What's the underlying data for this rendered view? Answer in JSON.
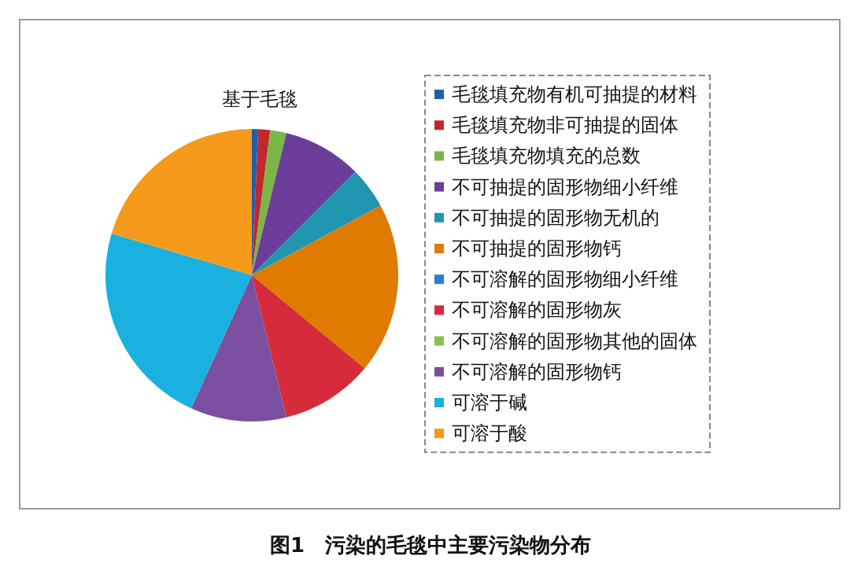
{
  "chart_data": {
    "type": "pie",
    "title": "基于毛毯",
    "categories": [
      "毛毯填充物有机可抽提的材料",
      "毛毯填充物非可抽提的固体",
      "毛毯填充物填充的总数",
      "不可抽提的固形物细小纤维",
      "不可抽提的固形物无机的",
      "不可抽提的固形物钙",
      "不可溶解的固形物细小纤维",
      "不可溶解的固形物灰",
      "不可溶解的固形物其他的固体",
      "不可溶解的固形物钙",
      "可溶于碱",
      "可溶于酸"
    ],
    "values": [
      0.7,
      1.3,
      1.8,
      8.7,
      4.6,
      18.9,
      0,
      10.2,
      0,
      10.6,
      22.8,
      20.4
    ],
    "colors": [
      "#1f5fb0",
      "#c0282d",
      "#7ab648",
      "#6a3d9a",
      "#2196b0",
      "#e07b00",
      "#2d7fd0",
      "#d62b3a",
      "#8bc34a",
      "#7b4fa0",
      "#1ab0e0",
      "#f59a1a"
    ],
    "legend": "right",
    "annotations": [
      "图1　污染的毛毯中主要污染物分布"
    ]
  }
}
